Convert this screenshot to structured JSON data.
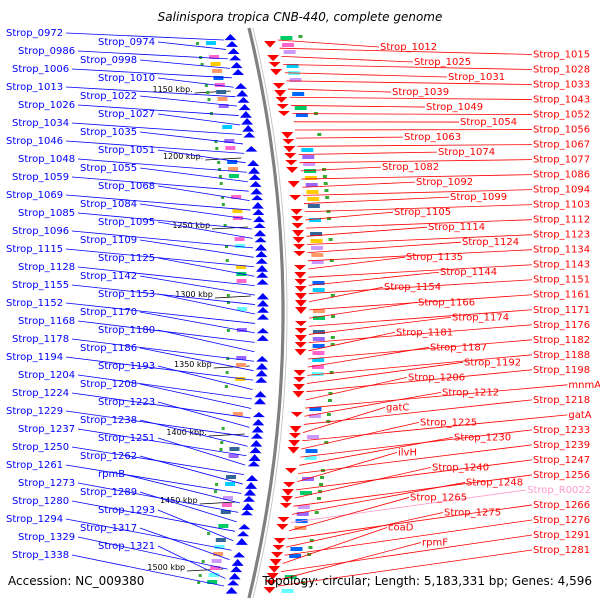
{
  "title": "Salinispora tropica CNB-440, complete genome",
  "footer": {
    "accession": "Accession: NC_009380",
    "summary": "Topology: circular; Length: 5,183,331 bp; Genes: 4,596"
  },
  "colors": {
    "left_strand": "#0000ff",
    "right_strand": "#ff0000",
    "rna_label": "#ff99cc",
    "backbone": "#808080",
    "tick_marker": "#33aa33"
  },
  "scale_ticks": [
    "1150 kbp.",
    "1200 kbp.",
    "1250 kbp",
    "1300 kbp",
    "1350 kbp",
    "1400 kbp.",
    "1450 kbp",
    "1500 kbp"
  ],
  "left_labels": [
    "Strop_0972",
    "Strop_0974",
    "Strop_0986",
    "Strop_0998",
    "Strop_1006",
    "Strop_1010",
    "Strop_1013",
    "Strop_1022",
    "Strop_1026",
    "Strop_1027",
    "Strop_1034",
    "Strop_1035",
    "Strop_1046",
    "Strop_1051",
    "Strop_1048",
    "Strop_1055",
    "Strop_1059",
    "Strop_1068",
    "Strop_1069",
    "Strop_1084",
    "Strop_1085",
    "Strop_1095",
    "Strop_1096",
    "Strop_1109",
    "Strop_1115",
    "Strop_1125",
    "Strop_1128",
    "Strop_1142",
    "Strop_1155",
    "Strop_1153",
    "Strop_1152",
    "Strop_1170",
    "Strop_1168",
    "Strop_1180",
    "Strop_1178",
    "Strop_1186",
    "Strop_1194",
    "Strop_1193",
    "Strop_1204",
    "Strop_1208",
    "Strop_1224",
    "Strop_1223",
    "Strop_1229",
    "Strop_1238",
    "Strop_1237",
    "Strop_1251",
    "Strop_1250",
    "Strop_1262",
    "Strop_1261",
    "rpmB",
    "Strop_1273",
    "Strop_1289",
    "Strop_1280",
    "Strop_1293",
    "Strop_1294",
    "Strop_1317",
    "Strop_1329",
    "Strop_1321",
    "Strop_1338"
  ],
  "right_labels": [
    "Strop_1012",
    "Strop_1015",
    "Strop_1025",
    "Strop_1028",
    "Strop_1031",
    "Strop_1033",
    "Strop_1039",
    "Strop_1043",
    "Strop_1049",
    "Strop_1052",
    "Strop_1054",
    "Strop_1056",
    "Strop_1063",
    "Strop_1067",
    "Strop_1074",
    "Strop_1077",
    "Strop_1082",
    "Strop_1086",
    "Strop_1092",
    "Strop_1094",
    "Strop_1099",
    "Strop_1103",
    "Strop_1105",
    "Strop_1112",
    "Strop_1114",
    "Strop_1123",
    "Strop_1124",
    "Strop_1134",
    "Strop_1135",
    "Strop_1143",
    "Strop_1144",
    "Strop_1151",
    "Strop_1154",
    "Strop_1161",
    "Strop_1166",
    "Strop_1171",
    "Strop_1174",
    "Strop_1176",
    "Strop_1181",
    "Strop_1182",
    "Strop_1187",
    "Strop_1188",
    "Strop_1192",
    "Strop_1198",
    "Strop_1206",
    "mnmA",
    "Strop_1212",
    "Strop_1218",
    "gatC",
    "gatA",
    "Strop_1225",
    "Strop_1233",
    "Strop_1230",
    "Strop_1239",
    "ilvH",
    "Strop_1247",
    "Strop_1240",
    "Strop_1256",
    "Strop_1248",
    "Strop_R0022",
    "Strop_1265",
    "Strop_1266",
    "Strop_1275",
    "Strop_1276",
    "coaD",
    "Strop_1291",
    "rpmF",
    "Strop_1281"
  ],
  "right_rna_labels": [
    "Strop_R0022"
  ]
}
